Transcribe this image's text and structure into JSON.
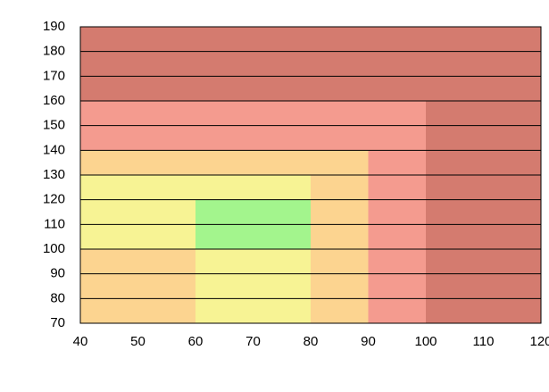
{
  "chart_data": {
    "type": "region",
    "xlim": [
      40,
      120
    ],
    "ylim": [
      70,
      190
    ],
    "xticks": [
      40,
      50,
      60,
      70,
      80,
      90,
      100,
      110,
      120
    ],
    "yticks": [
      70,
      80,
      90,
      100,
      110,
      120,
      130,
      140,
      150,
      160,
      170,
      180,
      190
    ],
    "grid": true,
    "regions": [
      {
        "x": [
          40,
          120
        ],
        "y": [
          70,
          190
        ],
        "color": "#d47b6f"
      },
      {
        "x": [
          40,
          100
        ],
        "y": [
          70,
          160
        ],
        "color": "#f49b8f"
      },
      {
        "x": [
          40,
          90
        ],
        "y": [
          70,
          140
        ],
        "color": "#fcd490"
      },
      {
        "x": [
          40,
          80
        ],
        "y": [
          100,
          130
        ],
        "color": "#f7f394"
      },
      {
        "x": [
          60,
          80
        ],
        "y": [
          70,
          100
        ],
        "color": "#f7f394"
      },
      {
        "x": [
          60,
          80
        ],
        "y": [
          100,
          120
        ],
        "color": "#a3f58d"
      }
    ]
  }
}
